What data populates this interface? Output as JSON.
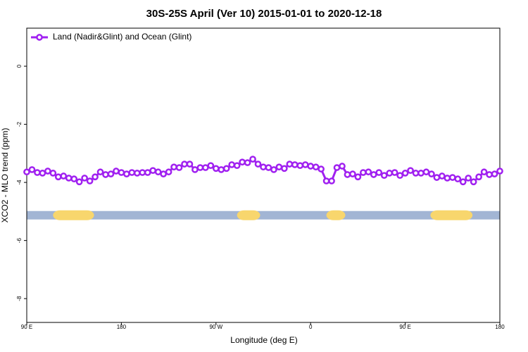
{
  "chart_data": {
    "type": "line",
    "title": "30S-25S April (Ver 10)   2015-01-01 to 2020-12-18",
    "xlabel": "Longitude (deg E)",
    "ylabel": "XCO2 - MLO trend (ppm)",
    "x": [
      90,
      95,
      100,
      105,
      110,
      115,
      120,
      125,
      130,
      135,
      140,
      145,
      150,
      155,
      160,
      165,
      170,
      175,
      180,
      185,
      190,
      195,
      200,
      205,
      210,
      215,
      220,
      225,
      230,
      235,
      240,
      245,
      250,
      255,
      260,
      265,
      270,
      275,
      280,
      285,
      290,
      295,
      300,
      305,
      310,
      315,
      320,
      325,
      330,
      335,
      340,
      345,
      350,
      355,
      360,
      365,
      370,
      375,
      380,
      385,
      390,
      395,
      400,
      405,
      410,
      415,
      420,
      425,
      430,
      435,
      440,
      445,
      450,
      455,
      460,
      465,
      470,
      475,
      480,
      485,
      490,
      495,
      500,
      505,
      510,
      515,
      520,
      525,
      530,
      535,
      540
    ],
    "series": [
      {
        "name": "Land (Nadir&Glint) and Ocean (Glint)",
        "color": "#a020f0",
        "values": [
          -3.64,
          -3.56,
          -3.66,
          -3.68,
          -3.61,
          -3.68,
          -3.81,
          -3.78,
          -3.85,
          -3.88,
          -3.98,
          -3.85,
          -3.95,
          -3.81,
          -3.64,
          -3.73,
          -3.71,
          -3.61,
          -3.66,
          -3.71,
          -3.66,
          -3.68,
          -3.66,
          -3.66,
          -3.59,
          -3.64,
          -3.71,
          -3.64,
          -3.47,
          -3.49,
          -3.37,
          -3.37,
          -3.56,
          -3.49,
          -3.49,
          -3.42,
          -3.52,
          -3.56,
          -3.52,
          -3.39,
          -3.42,
          -3.3,
          -3.32,
          -3.2,
          -3.37,
          -3.47,
          -3.49,
          -3.56,
          -3.47,
          -3.52,
          -3.37,
          -3.39,
          -3.42,
          -3.39,
          -3.44,
          -3.47,
          -3.54,
          -3.95,
          -3.95,
          -3.49,
          -3.44,
          -3.73,
          -3.71,
          -3.81,
          -3.66,
          -3.64,
          -3.73,
          -3.66,
          -3.76,
          -3.68,
          -3.66,
          -3.76,
          -3.68,
          -3.59,
          -3.68,
          -3.68,
          -3.64,
          -3.71,
          -3.83,
          -3.78,
          -3.85,
          -3.83,
          -3.88,
          -3.98,
          -3.85,
          -3.98,
          -3.81,
          -3.64,
          -3.73,
          -3.71,
          -3.61
        ]
      }
    ],
    "xlim": [
      90,
      540
    ],
    "xticks": [
      {
        "value": 90,
        "label": "90 E"
      },
      180,
      {
        "value": 270,
        "label": "90 W"
      },
      {
        "value": 360,
        "label": "0"
      },
      {
        "value": 450,
        "label": "90 E"
      },
      {
        "value": 540,
        "label": "180"
      }
    ],
    "ylim": [
      -8.82,
      1.31
    ],
    "yticks": [
      0,
      -2,
      -4,
      -6,
      -8
    ],
    "legend": "top-left",
    "strip": {
      "y": -5.13,
      "ocean_color": "#a2b5d4",
      "land_color": "#f8d66d",
      "land": [
        [
          115,
          154
        ],
        [
          290,
          312
        ],
        [
          375,
          393
        ],
        [
          474,
          514
        ]
      ]
    }
  }
}
